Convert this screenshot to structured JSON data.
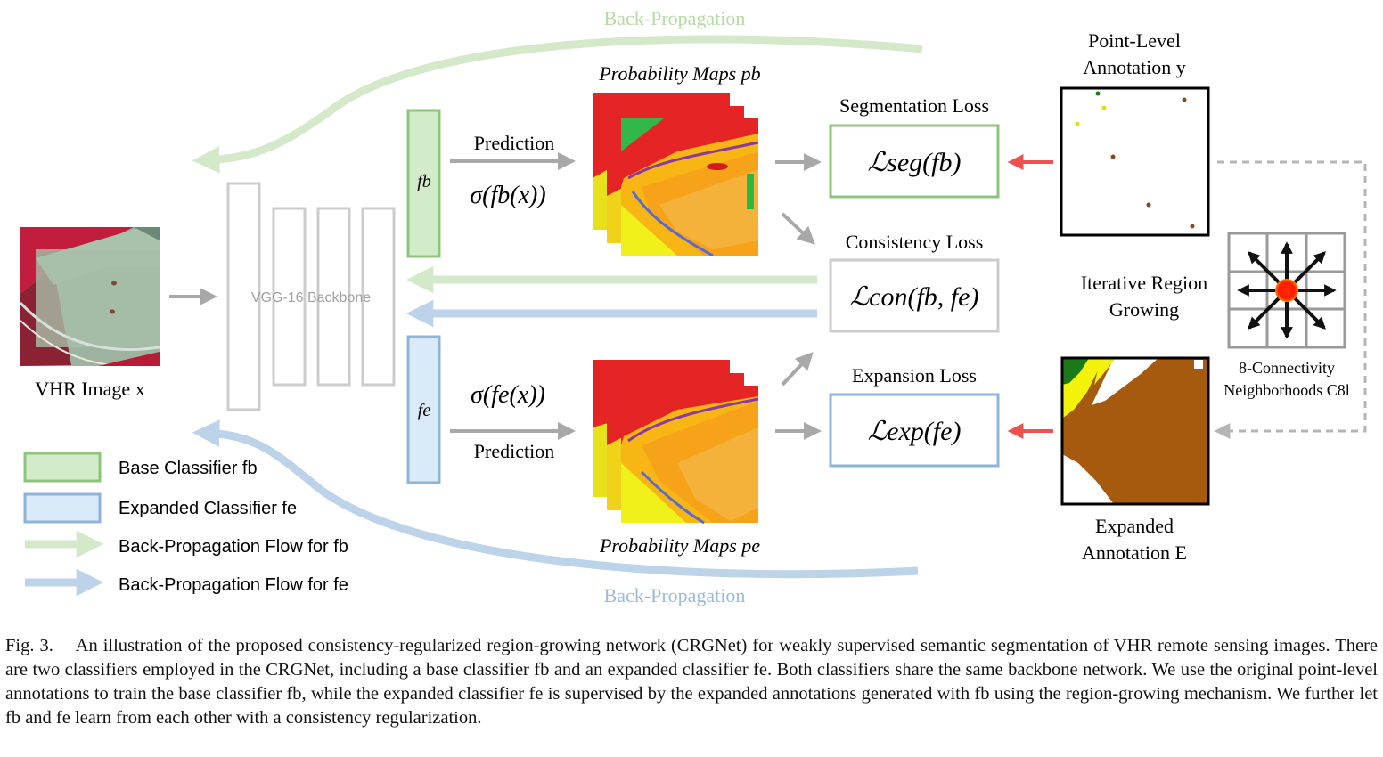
{
  "figure": {
    "back_propagation_top": "Back-Propagation",
    "back_propagation_bottom": "Back-Propagation",
    "input_label": "VHR Image x",
    "backbone_label": "VGG-16 Backbone",
    "fb_label": "fb",
    "fe_label": "fe",
    "prediction_top": "Prediction",
    "prediction_bottom": "Prediction",
    "sigma_top": "σ(fb(x))",
    "sigma_bottom": "σ(fe(x))",
    "prob_maps_top": "Probability Maps pb",
    "prob_maps_bottom": "Probability Maps pe",
    "seg_loss_title": "Segmentation Loss",
    "seg_loss_formula": "ℒseg(fb)",
    "con_loss_title": "Consistency Loss",
    "con_loss_formula": "ℒcon(fb, fe)",
    "exp_loss_title": "Expansion Loss",
    "exp_loss_formula": "ℒexp(fe)",
    "point_annotation_line1": "Point-Level",
    "point_annotation_line2": "Annotation y",
    "region_growing_line1": "Iterative Region",
    "region_growing_line2": "Growing",
    "connectivity_line1": "8-Connectivity",
    "connectivity_line2": "Neighborhoods C8l",
    "expanded_annotation_line1": "Expanded",
    "expanded_annotation_line2": "Annotation E"
  },
  "legend": [
    {
      "label": "Base Classifier fb",
      "kind": "box",
      "color": "#7fbf6a"
    },
    {
      "label": "Expanded Classifier fe",
      "kind": "box",
      "color": "#8fb3d9"
    },
    {
      "label": "Back-Propagation Flow for fb",
      "kind": "arrow",
      "color": "#cfe6c4"
    },
    {
      "label": "Back-Propagation Flow for fe",
      "kind": "arrow",
      "color": "#bcd3ea"
    }
  ],
  "caption": {
    "label": "Fig. 3.",
    "text": "An illustration of the proposed consistency-regularized region-growing network (CRGNet) for weakly supervised semantic segmentation of VHR remote sensing images. There are two classifiers employed in the CRGNet, including a base classifier fb and an expanded classifier fe. Both classifiers share the same backbone network. We use the original point-level annotations to train the base classifier fb, while the expanded classifier fe is supervised by the expanded annotations generated with fb using the region-growing mechanism. We further let fb and fe learn from each other with a consistency regularization."
  },
  "colors": {
    "green_border": "#8cc47c",
    "green_fill": "#d3ebc8",
    "blue_border": "#8fb3d9",
    "blue_fill": "#daeaf8",
    "gray_box": "#c8c8c8",
    "red_arrow": "#f05050",
    "annotation_brown": "#a55a0e",
    "annotation_green": "#1a7a1a",
    "annotation_yellow": "#f2f20a"
  }
}
